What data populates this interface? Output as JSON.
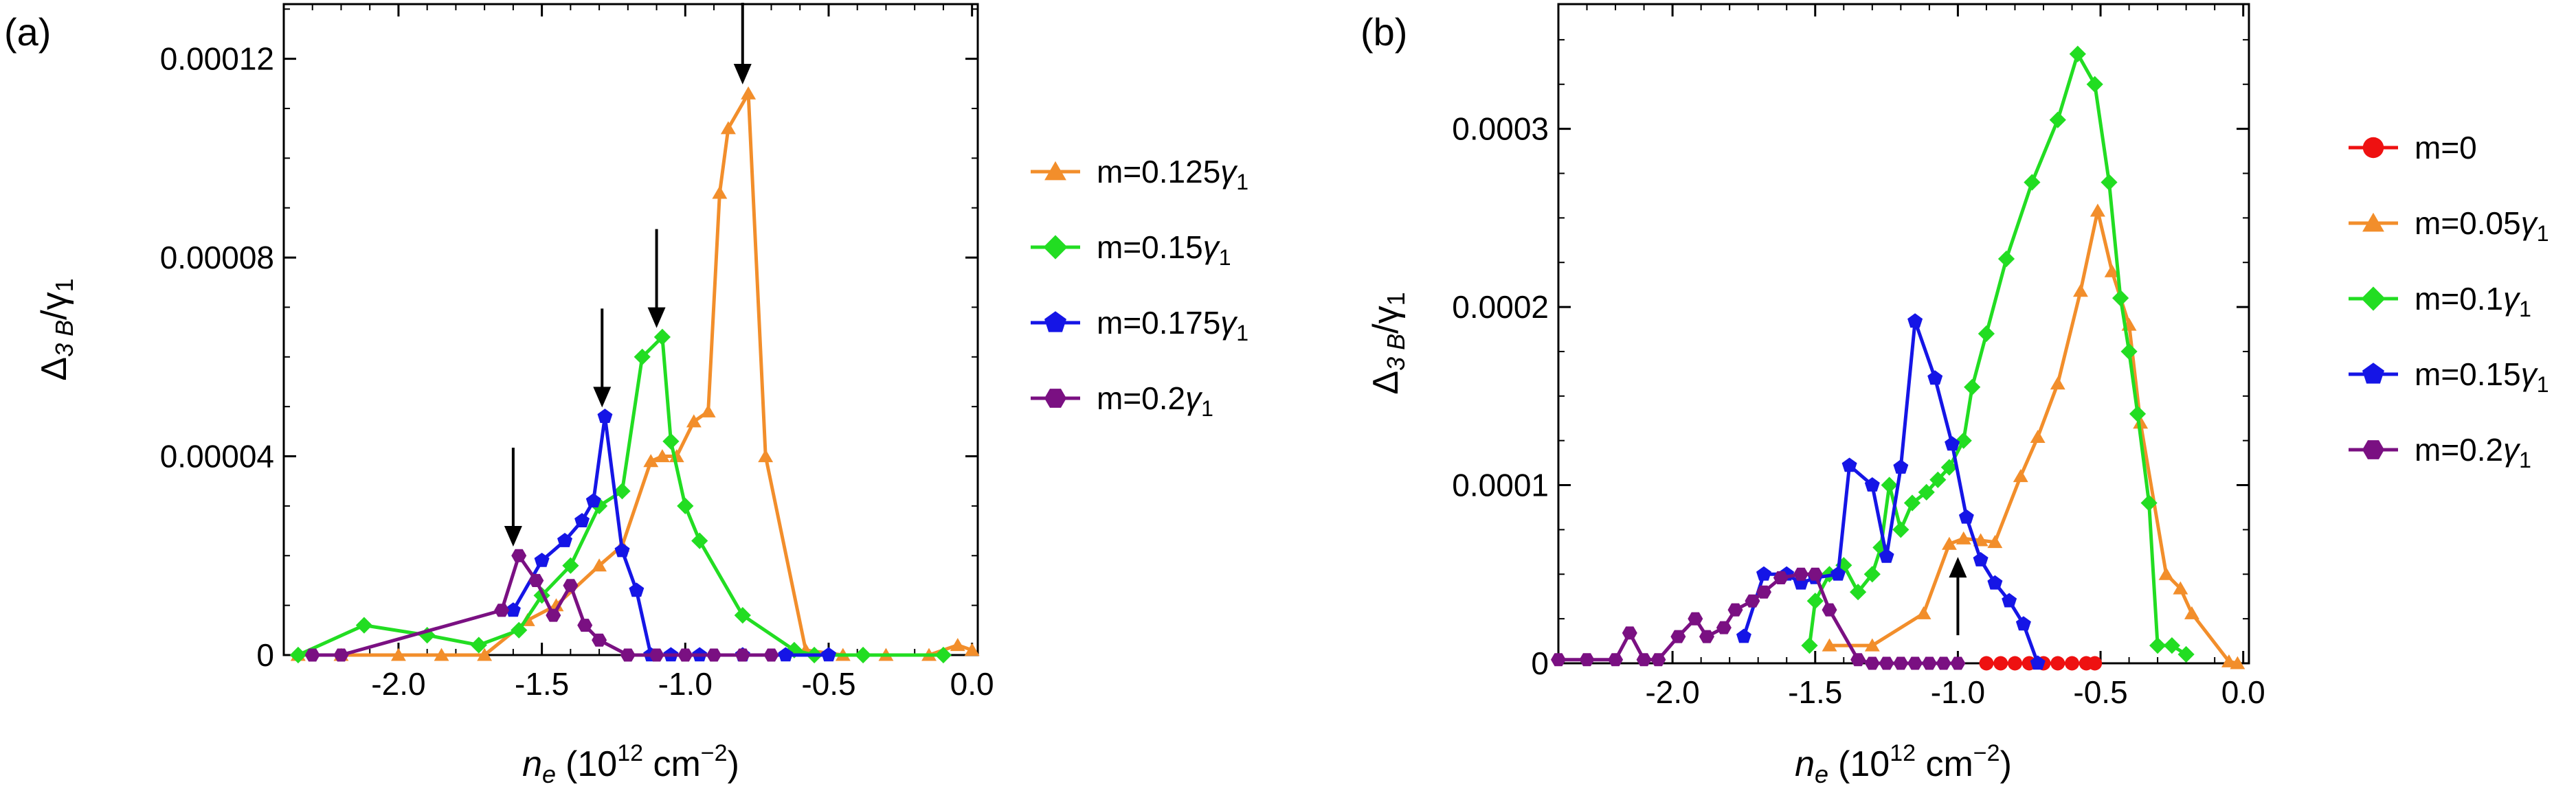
{
  "chart_data": [
    {
      "type": "line",
      "panel_label": "(a)",
      "xlabel": {
        "var": "n",
        "sub": "e",
        "unit": "(10",
        "exp": "12",
        "unit2": " cm",
        "exp2": "−2",
        "close": ")"
      },
      "ylabel": {
        "delta": "Δ",
        "sub": "3 B",
        "slash": "/γ",
        "sub2": "1"
      },
      "xlim": [
        -2.4,
        0.02
      ],
      "ylim": [
        0,
        0.000131
      ],
      "xticks": [
        -2.0,
        -1.5,
        -1.0,
        -0.5,
        0.0
      ],
      "xtick_labels": [
        "-2.0",
        "-1.5",
        "-1.0",
        "-0.5",
        "0.0"
      ],
      "yticks": [
        0,
        4e-05,
        8e-05,
        0.00012
      ],
      "ytick_labels": [
        "0",
        "0.00004",
        "0.00008",
        "0.00012"
      ],
      "series": [
        {
          "name": "m=0.125γ1",
          "label": "m=0.125",
          "gamma": "γ",
          "gsub": "1",
          "color": "#f28e2b",
          "marker": "triangle",
          "x": [
            -2.35,
            -2.2,
            -2.0,
            -1.85,
            -1.7,
            -1.55,
            -1.45,
            -1.3,
            -1.22,
            -1.12,
            -1.08,
            -1.03,
            -0.97,
            -0.92,
            -0.88,
            -0.85,
            -0.78,
            -0.72,
            -0.58,
            -0.45,
            -0.3,
            -0.15,
            -0.05,
            0.0
          ],
          "y": [
            0,
            0,
            0,
            0,
            0,
            7e-06,
            1e-05,
            1.8e-05,
            2.2e-05,
            3.9e-05,
            4e-05,
            4e-05,
            4.7e-05,
            4.9e-05,
            9.3e-05,
            0.000106,
            0.000113,
            4e-05,
            1e-06,
            0,
            0,
            0,
            2e-06,
            1e-06
          ]
        },
        {
          "name": "m=0.15γ1",
          "label": "m=0.15",
          "gamma": "γ",
          "gsub": "1",
          "color": "#22dd22",
          "marker": "diamond",
          "x": [
            -2.35,
            -2.12,
            -1.9,
            -1.72,
            -1.58,
            -1.5,
            -1.4,
            -1.3,
            -1.22,
            -1.15,
            -1.08,
            -1.05,
            -1.0,
            -0.95,
            -0.8,
            -0.62,
            -0.55,
            -0.38,
            -0.1
          ],
          "y": [
            0,
            6e-06,
            4e-06,
            2e-06,
            5e-06,
            1.2e-05,
            1.8e-05,
            3e-05,
            3.3e-05,
            6e-05,
            6.4e-05,
            4.3e-05,
            3e-05,
            2.3e-05,
            8e-06,
            1e-06,
            0,
            0,
            0
          ]
        },
        {
          "name": "m=0.175γ1",
          "label": "m=0.175",
          "gamma": "γ",
          "gsub": "1",
          "color": "#1515e6",
          "marker": "pentagon",
          "x": [
            -1.6,
            -1.5,
            -1.42,
            -1.36,
            -1.32,
            -1.28,
            -1.22,
            -1.17,
            -1.12,
            -1.05,
            -0.95,
            -0.8,
            -0.65,
            -0.5
          ],
          "y": [
            9e-06,
            1.9e-05,
            2.3e-05,
            2.7e-05,
            3.1e-05,
            4.8e-05,
            2.1e-05,
            1.3e-05,
            0,
            0,
            0,
            0,
            0,
            0
          ]
        },
        {
          "name": "m=0.2γ1",
          "label": "m=0.2",
          "gamma": "γ",
          "gsub": "1",
          "color": "#7a1082",
          "marker": "hexagon",
          "x": [
            -2.3,
            -2.2,
            -1.64,
            -1.58,
            -1.52,
            -1.46,
            -1.4,
            -1.35,
            -1.3,
            -1.2,
            -1.1,
            -1.0,
            -0.9,
            -0.8,
            -0.7
          ],
          "y": [
            0,
            0,
            9e-06,
            2e-05,
            1.5e-05,
            8e-06,
            1.4e-05,
            6e-06,
            3e-06,
            0,
            0,
            0,
            0,
            0,
            0
          ]
        }
      ],
      "arrows": [
        {
          "x": -0.8,
          "y_tip": 0.000114,
          "direction": "down"
        },
        {
          "x": -1.1,
          "y_tip": 6.5e-05,
          "direction": "down"
        },
        {
          "x": -1.29,
          "y_tip": 4.9e-05,
          "direction": "down"
        },
        {
          "x": -1.6,
          "y_tip": 2.1e-05,
          "direction": "down"
        }
      ]
    },
    {
      "type": "line",
      "panel_label": "(b)",
      "xlabel": {
        "var": "n",
        "sub": "e",
        "unit": "(10",
        "exp": "12",
        "unit2": " cm",
        "exp2": "−2",
        "close": ")"
      },
      "ylabel": {
        "delta": "Δ",
        "sub": "3 B",
        "slash": "/γ",
        "sub2": "1"
      },
      "xlim": [
        -2.4,
        0.02
      ],
      "ylim": [
        0,
        0.00037
      ],
      "xticks": [
        -2.0,
        -1.5,
        -1.0,
        -0.5,
        0.0
      ],
      "xtick_labels": [
        "-2.0",
        "-1.5",
        "-1.0",
        "-0.5",
        "0.0"
      ],
      "yticks": [
        0,
        0.0001,
        0.0002,
        0.0003
      ],
      "ytick_labels": [
        "0",
        "0.0001",
        "0.0002",
        "0.0003"
      ],
      "series": [
        {
          "name": "m=0",
          "label": "m=0",
          "gamma": "",
          "gsub": "",
          "color": "#ee1111",
          "marker": "circle",
          "x": [
            -0.9,
            -0.85,
            -0.8,
            -0.75,
            -0.7,
            -0.65,
            -0.6,
            -0.55,
            -0.52
          ],
          "y": [
            0,
            0,
            0,
            0,
            0,
            0,
            0,
            0,
            0
          ]
        },
        {
          "name": "m=0.05γ1",
          "label": "m=0.05",
          "gamma": "γ",
          "gsub": "1",
          "color": "#f28e2b",
          "marker": "triangle",
          "x": [
            -1.45,
            -1.3,
            -1.12,
            -1.03,
            -0.98,
            -0.92,
            -0.87,
            -0.78,
            -0.72,
            -0.65,
            -0.57,
            -0.51,
            -0.46,
            -0.4,
            -0.36,
            -0.27,
            -0.22,
            -0.18,
            -0.05,
            -0.02
          ],
          "y": [
            1e-05,
            1e-05,
            2.8e-05,
            6.7e-05,
            7e-05,
            6.9e-05,
            6.8e-05,
            0.000105,
            0.000127,
            0.000157,
            0.000209,
            0.000254,
            0.00022,
            0.00019,
            0.000135,
            5e-05,
            4.2e-05,
            2.8e-05,
            1e-06,
            0
          ]
        },
        {
          "name": "m=0.1γ1",
          "label": "m=0.1",
          "gamma": "γ",
          "gsub": "1",
          "color": "#22dd22",
          "marker": "diamond",
          "x": [
            -1.52,
            -1.5,
            -1.45,
            -1.4,
            -1.35,
            -1.3,
            -1.27,
            -1.24,
            -1.2,
            -1.16,
            -1.11,
            -1.07,
            -1.03,
            -0.98,
            -0.95,
            -0.9,
            -0.83,
            -0.74,
            -0.65,
            -0.58,
            -0.52,
            -0.47,
            -0.43,
            -0.4,
            -0.37,
            -0.33,
            -0.3,
            -0.25,
            -0.2
          ],
          "y": [
            1e-05,
            3.5e-05,
            5e-05,
            5.5e-05,
            4e-05,
            5e-05,
            6.5e-05,
            0.0001,
            7.5e-05,
            9e-05,
            9.6e-05,
            0.000103,
            0.00011,
            0.000125,
            0.000155,
            0.000185,
            0.000227,
            0.00027,
            0.000305,
            0.000342,
            0.000325,
            0.00027,
            0.000205,
            0.000175,
            0.00014,
            9e-05,
            1e-05,
            1e-05,
            5e-06
          ]
        },
        {
          "name": "m=0.15γ1",
          "label": "m=0.15",
          "gamma": "γ",
          "gsub": "1",
          "color": "#1515e6",
          "marker": "pentagon",
          "x": [
            -1.75,
            -1.68,
            -1.6,
            -1.55,
            -1.5,
            -1.42,
            -1.38,
            -1.3,
            -1.25,
            -1.2,
            -1.15,
            -1.08,
            -1.02,
            -0.97,
            -0.92,
            -0.87,
            -0.82,
            -0.77,
            -0.72
          ],
          "y": [
            1.5e-05,
            5e-05,
            5e-05,
            4.5e-05,
            4.8e-05,
            5e-05,
            0.000111,
            0.0001,
            6e-05,
            0.00011,
            0.000192,
            0.00016,
            0.000123,
            8.2e-05,
            5.8e-05,
            4.5e-05,
            3.5e-05,
            2.2e-05,
            0
          ]
        },
        {
          "name": "m=0.2γ1",
          "label": "m=0.2",
          "gamma": "γ",
          "gsub": "1",
          "color": "#7a1082",
          "marker": "hexagon",
          "x": [
            -2.4,
            -2.3,
            -2.2,
            -2.15,
            -2.1,
            -2.05,
            -1.98,
            -1.92,
            -1.88,
            -1.82,
            -1.78,
            -1.72,
            -1.68,
            -1.62,
            -1.55,
            -1.5,
            -1.45,
            -1.35,
            -1.3,
            -1.25,
            -1.2,
            -1.15,
            -1.1,
            -1.05,
            -1.0
          ],
          "y": [
            2e-06,
            2e-06,
            2e-06,
            1.7e-05,
            2e-06,
            2e-06,
            1.5e-05,
            2.5e-05,
            1.5e-05,
            2e-05,
            3e-05,
            3.5e-05,
            4e-05,
            4.8e-05,
            5e-05,
            5e-05,
            3e-05,
            2e-06,
            0,
            0,
            0,
            0,
            0,
            0,
            0
          ]
        }
      ],
      "arrows": [
        {
          "x": -1.0,
          "y_tip": 6.2e-05,
          "direction": "up"
        }
      ]
    }
  ]
}
